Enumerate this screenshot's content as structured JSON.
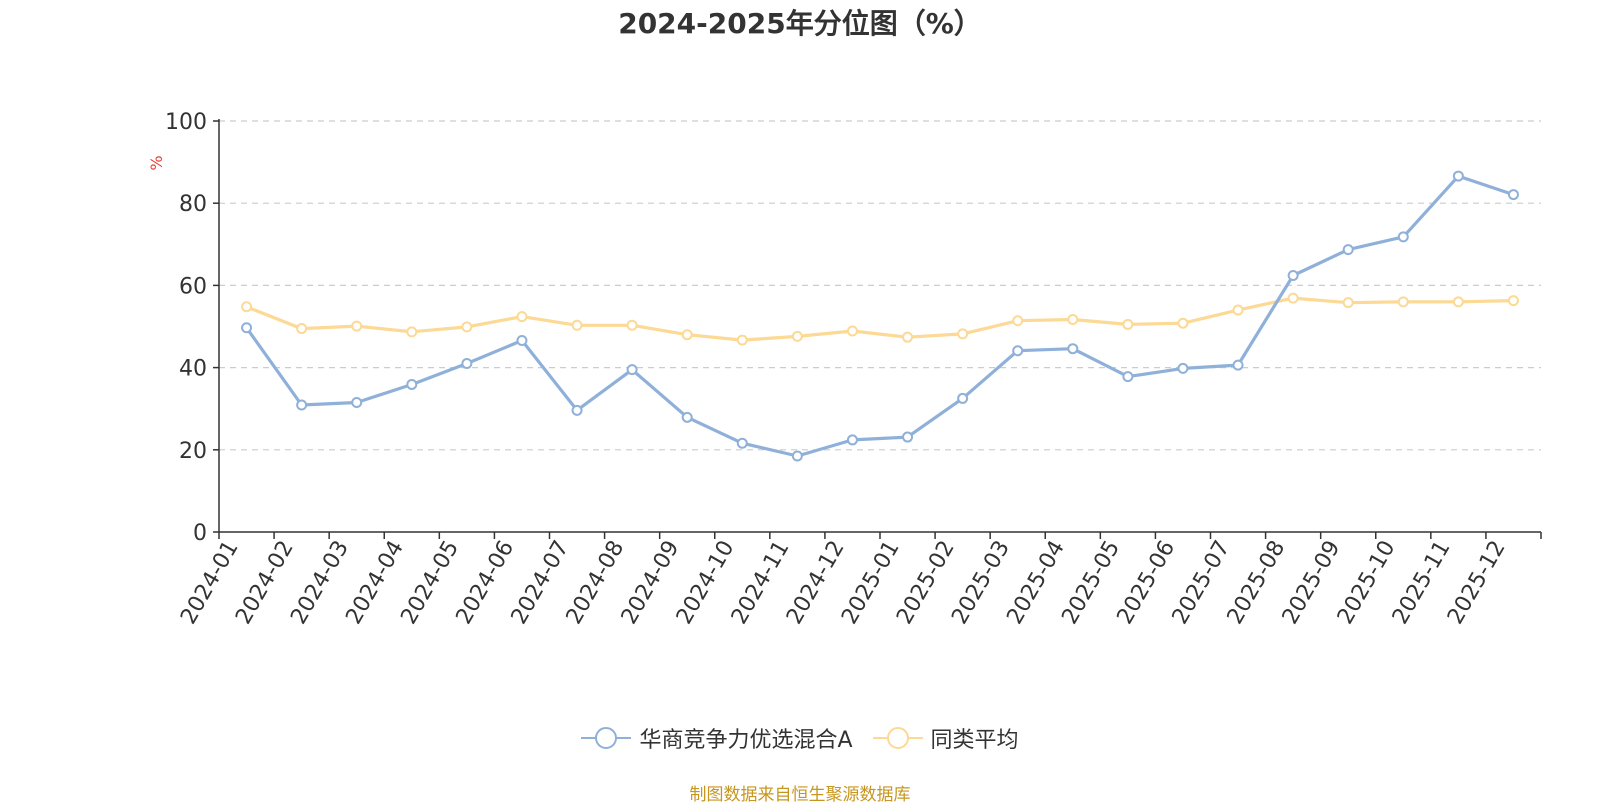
{
  "chart_data": {
    "type": "line",
    "title": "2024-2025年分位图（%）",
    "ylabel": "%",
    "xlabel": "",
    "ylim": [
      0,
      100
    ],
    "yticks": [
      0,
      20,
      40,
      60,
      80,
      100
    ],
    "grid": true,
    "legend_position": "bottom",
    "categories": [
      "2024-01",
      "2024-02",
      "2024-03",
      "2024-04",
      "2024-05",
      "2024-06",
      "2024-07",
      "2024-08",
      "2024-09",
      "2024-10",
      "2024-11",
      "2024-12",
      "2025-01",
      "2025-02",
      "2025-03",
      "2025-04",
      "2025-05",
      "2025-06",
      "2025-07",
      "2025-08",
      "2025-09",
      "2025-10",
      "2025-11",
      "2025-12"
    ],
    "series": [
      {
        "name": "华商竞争力优选混合A",
        "color": "#8fb0d9",
        "values": [
          49.7,
          30.9,
          31.5,
          35.9,
          41.0,
          46.6,
          29.6,
          39.5,
          27.9,
          21.6,
          18.5,
          22.4,
          23.1,
          32.5,
          44.1,
          44.6,
          37.8,
          39.8,
          40.6,
          62.4,
          68.7,
          71.8,
          86.6,
          82.1
        ]
      },
      {
        "name": "同类平均",
        "color": "#fcd994",
        "values": [
          54.8,
          49.5,
          50.1,
          48.7,
          49.9,
          52.4,
          50.3,
          50.3,
          48.0,
          46.7,
          47.6,
          48.9,
          47.4,
          48.2,
          51.4,
          51.7,
          50.5,
          50.8,
          54.0,
          56.9,
          55.8,
          56.0,
          56.0,
          56.3
        ]
      }
    ]
  },
  "source_note": "制图数据来自恒生聚源数据库"
}
